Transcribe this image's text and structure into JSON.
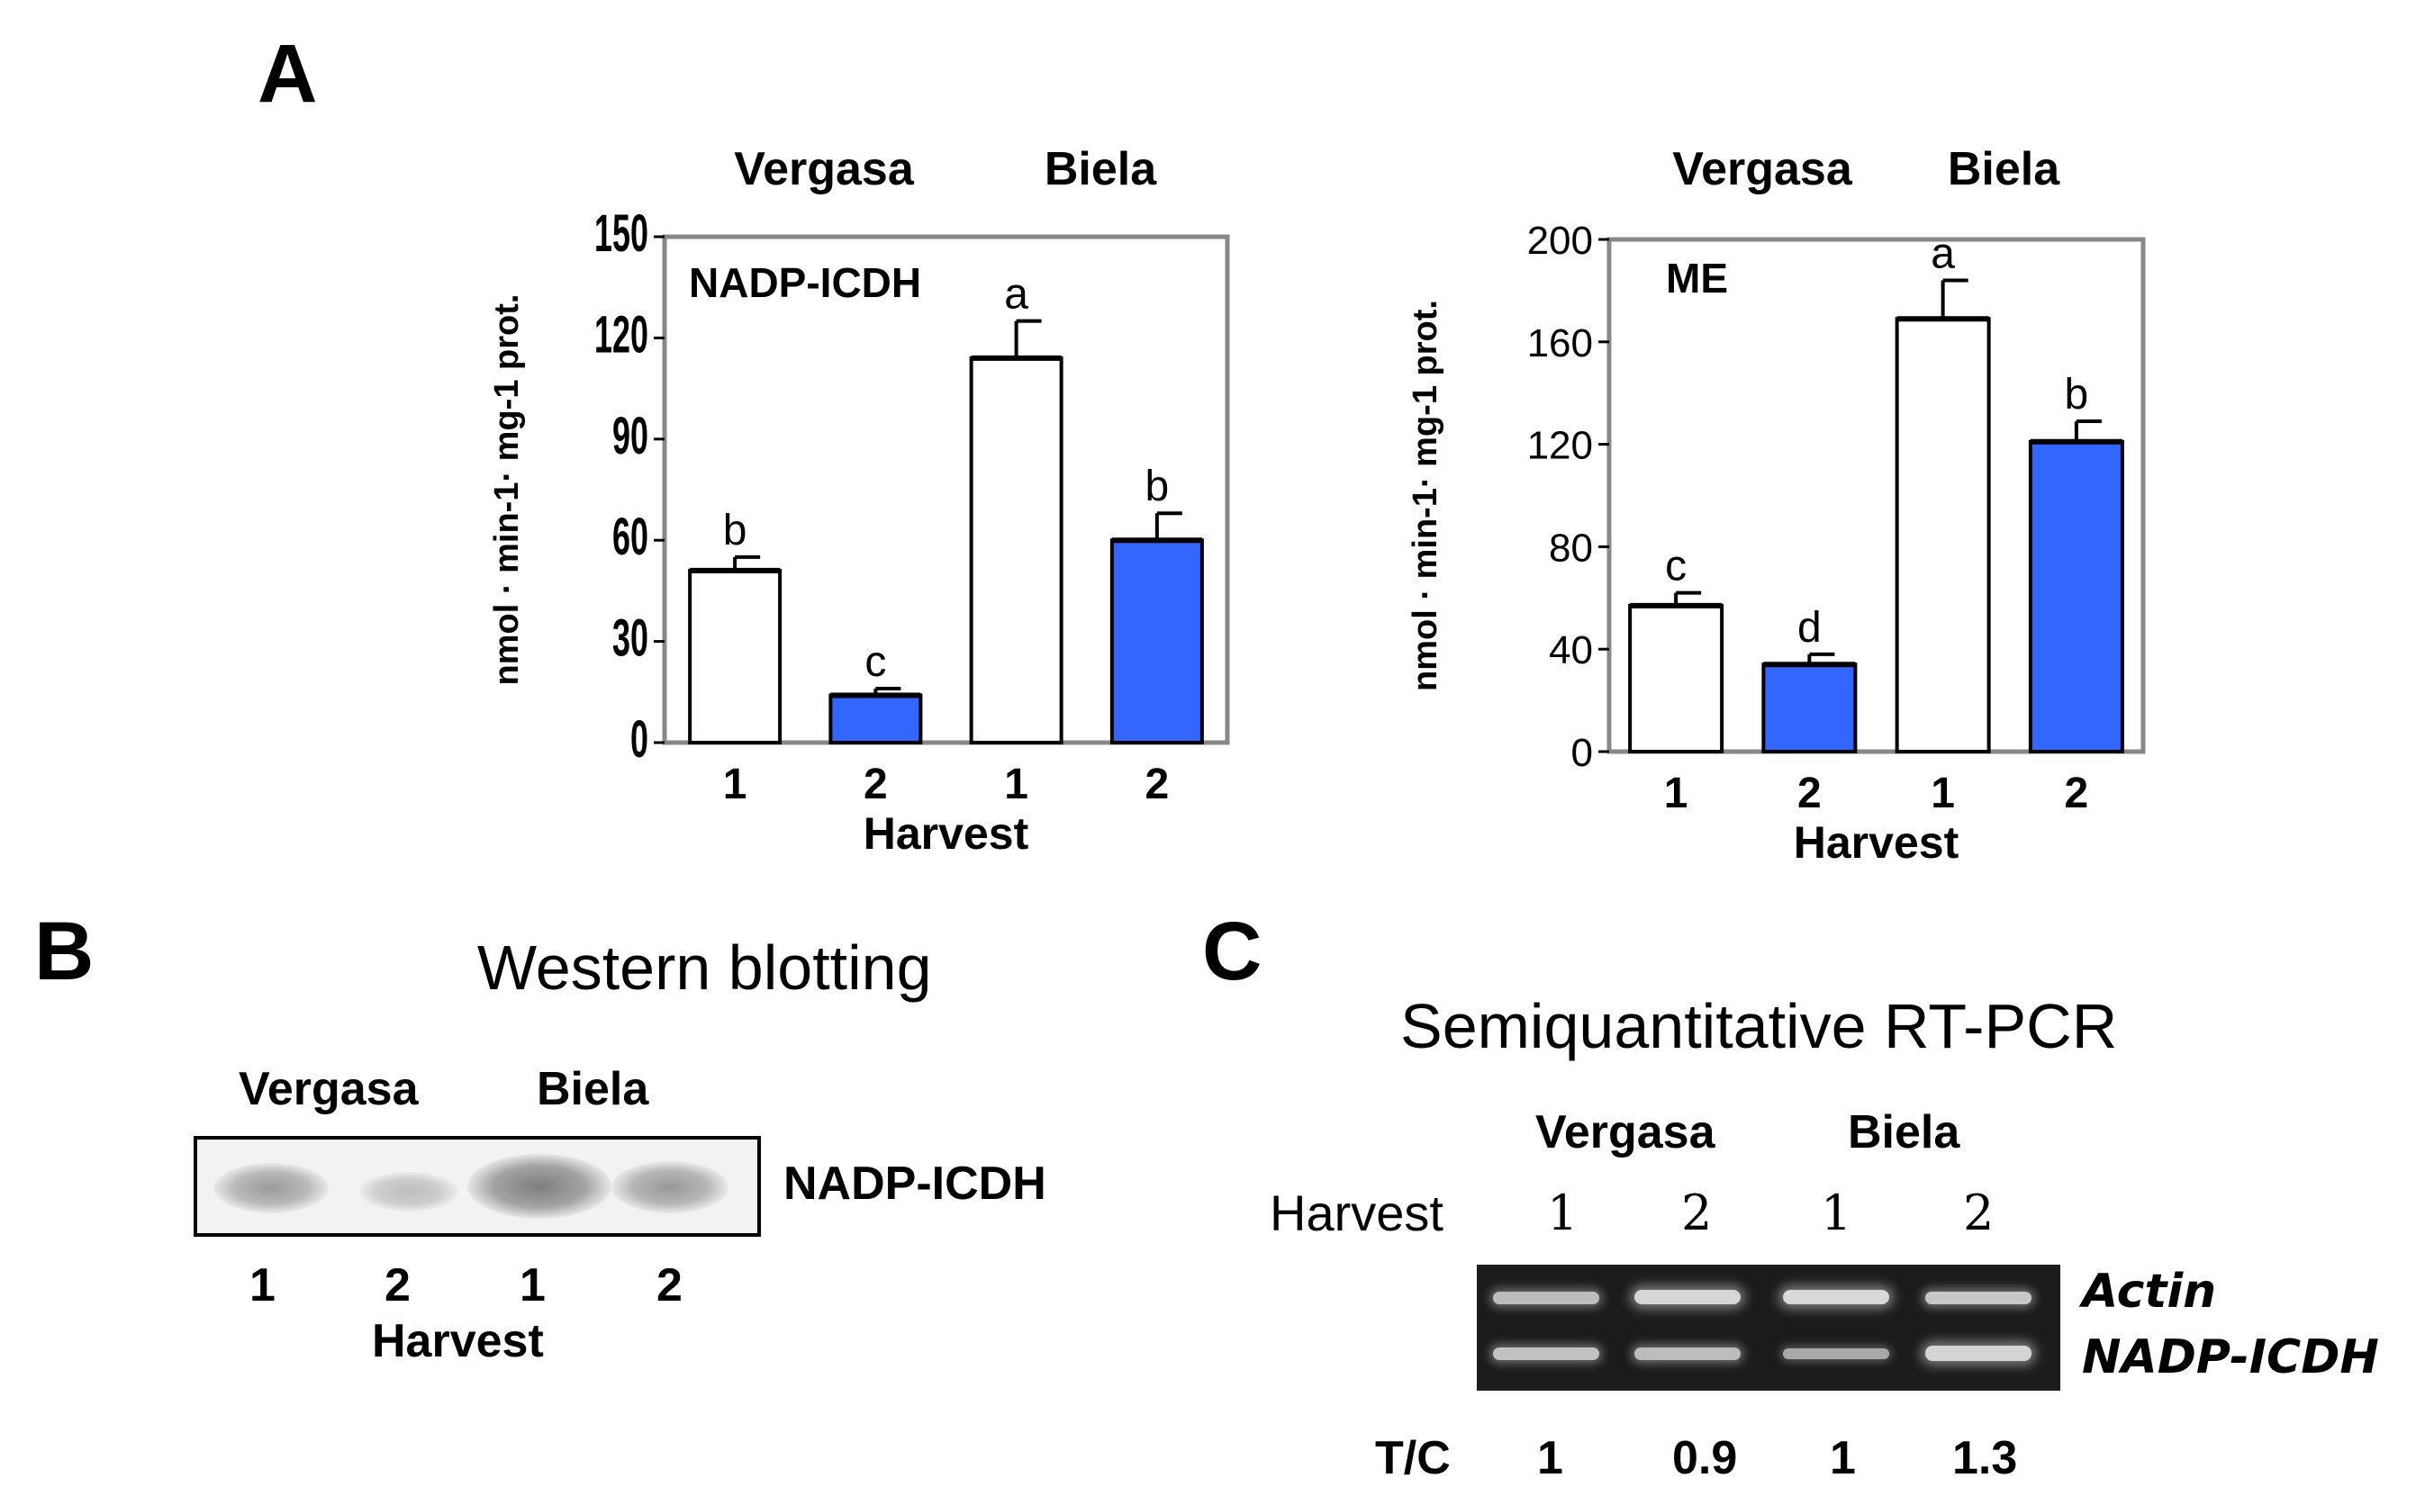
{
  "panels": {
    "a_label": "A",
    "b_label": "B",
    "c_label": "C"
  },
  "chart_data": [
    {
      "type": "bar",
      "id": "nadp-icdh",
      "title": "NADP-ICDH",
      "group_labels": [
        "Vergasa",
        "Biela"
      ],
      "categories": [
        "1",
        "2",
        "1",
        "2"
      ],
      "values": [
        51,
        14,
        114,
        60
      ],
      "errors": [
        4,
        2,
        11,
        8
      ],
      "letters": [
        "b",
        "c",
        "a",
        "b"
      ],
      "fills": [
        "#ffffff",
        "#3366ff",
        "#ffffff",
        "#3366ff"
      ],
      "xlabel": "Harvest",
      "ylabel": "nmol · min-1· mg-1 prot.",
      "ylim": [
        0,
        150
      ],
      "yticks": [
        0,
        30,
        60,
        90,
        120,
        150
      ]
    },
    {
      "type": "bar",
      "id": "me",
      "title": "ME",
      "group_labels": [
        "Vergasa",
        "Biela"
      ],
      "categories": [
        "1",
        "2",
        "1",
        "2"
      ],
      "values": [
        57,
        34,
        169,
        121
      ],
      "errors": [
        5,
        4,
        15,
        8
      ],
      "letters": [
        "c",
        "d",
        "a",
        "b"
      ],
      "fills": [
        "#ffffff",
        "#3366ff",
        "#ffffff",
        "#3366ff"
      ],
      "xlabel": "Harvest",
      "ylabel": "nmol · min-1· mg-1 prot.",
      "ylim": [
        0,
        200
      ],
      "yticks": [
        0,
        40,
        80,
        120,
        160,
        200
      ]
    }
  ],
  "western": {
    "title": "Western blotting",
    "groups": [
      "Vergasa",
      "Biela"
    ],
    "band_label": "NADP-ICDH",
    "lanes": [
      "1",
      "2",
      "1",
      "2"
    ],
    "xlabel": "Harvest"
  },
  "rtpcr": {
    "title": "Semiquantitative RT-PCR",
    "groups": [
      "Vergasa",
      "Biela"
    ],
    "harvest_label": "Harvest",
    "lanes": [
      "1",
      "2",
      "1",
      "2"
    ],
    "genes": [
      "Actin",
      "NADP-ICDH"
    ],
    "tc_label": "T/C",
    "tc_values": [
      "1",
      "0.9",
      "1",
      "1.3"
    ]
  }
}
